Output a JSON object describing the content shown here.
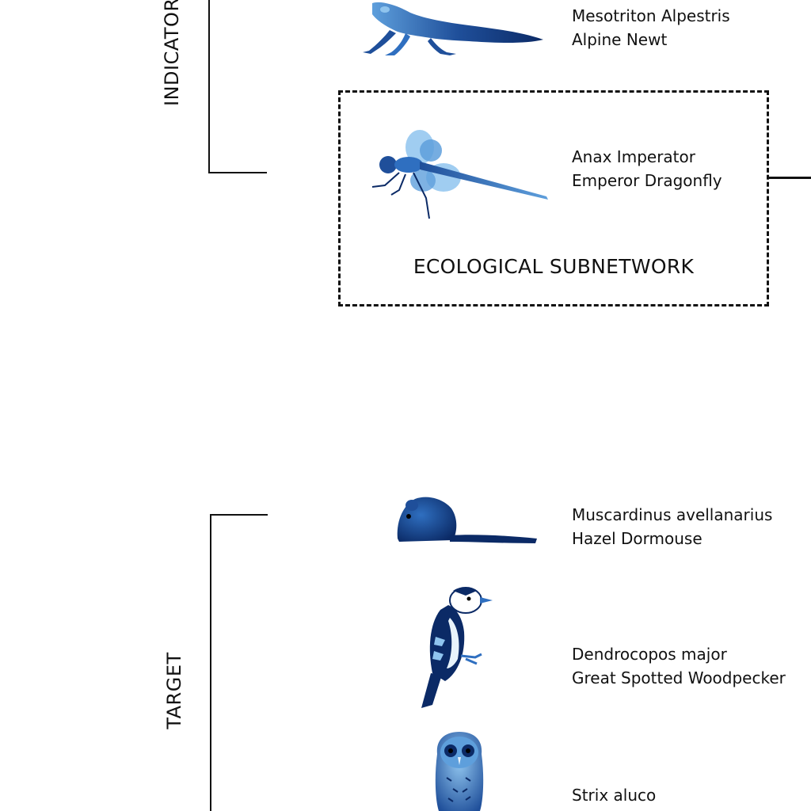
{
  "groups": {
    "indicator": {
      "label": "INDICATOR"
    },
    "target": {
      "label": "TARGET"
    }
  },
  "subnetwork": {
    "label": "ECOLOGICAL SUBNETWORK"
  },
  "species": [
    {
      "latin": "Mesotriton Alpestris",
      "common": "Alpine Newt",
      "icon": "newt-icon"
    },
    {
      "latin": "Anax Imperator",
      "common": "Emperor Dragonfly",
      "icon": "dragonfly-icon"
    },
    {
      "latin": "Muscardinus avellanarius",
      "common": "Hazel Dormouse",
      "icon": "dormouse-icon"
    },
    {
      "latin": "Dendrocopos major",
      "common": "Great Spotted Woodpecker",
      "icon": "woodpecker-icon"
    },
    {
      "latin": "Strix aluco",
      "common": "",
      "icon": "owl-icon"
    }
  ],
  "colors": {
    "animal_dark": "#0b2a66",
    "animal_mid": "#2f6fc0",
    "animal_light": "#8fc4ee",
    "line": "#111111"
  }
}
